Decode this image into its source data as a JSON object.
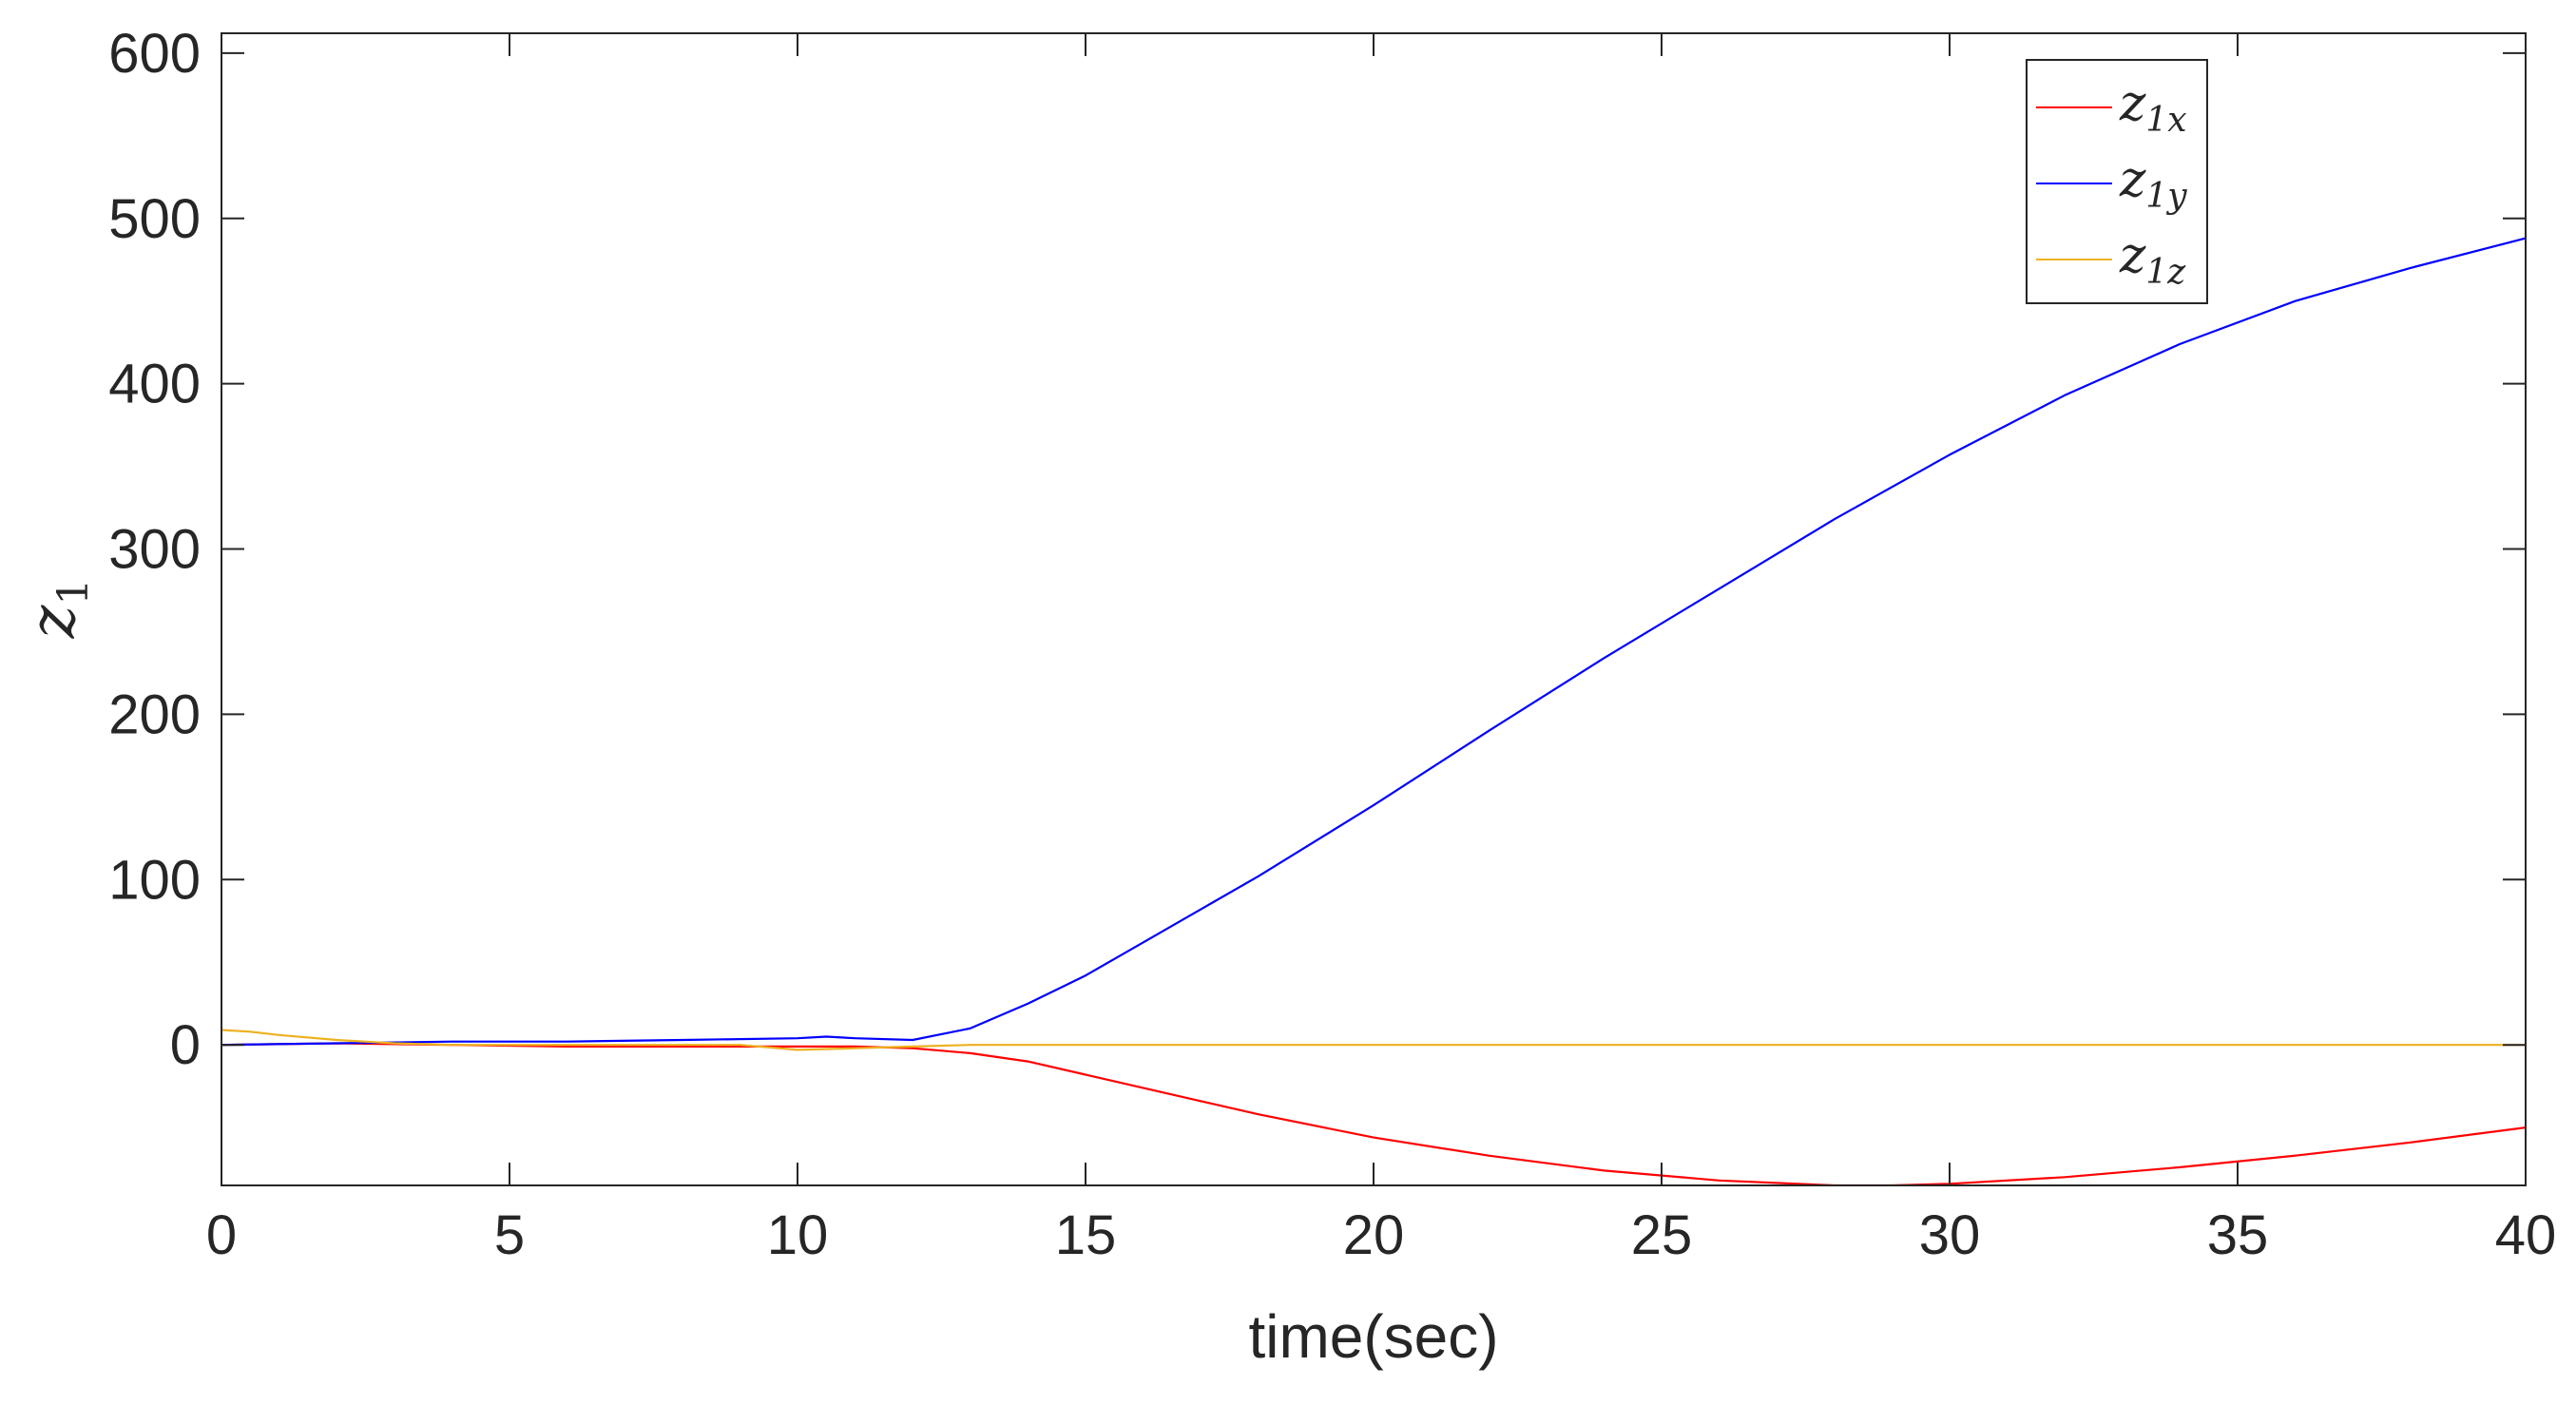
{
  "chart_data": {
    "type": "line",
    "title": "",
    "xlabel": "time(sec)",
    "ylabel": "z",
    "ylabel_sub": "1",
    "xlim": [
      0,
      40
    ],
    "ylim": [
      -85,
      612
    ],
    "xticks": [
      0,
      5,
      10,
      15,
      20,
      25,
      30,
      35,
      40
    ],
    "yticks": [
      0,
      100,
      200,
      300,
      400,
      500,
      600
    ],
    "xtick_labels": [
      "0",
      "5",
      "10",
      "15",
      "20",
      "25",
      "30",
      "35",
      "40"
    ],
    "ytick_labels": [
      "0",
      "100",
      "200",
      "300",
      "400",
      "500",
      "600"
    ],
    "grid": false,
    "box": true,
    "legend_position": "top-right",
    "series": [
      {
        "name": "z",
        "name_sub": "1x",
        "color": "#ff0000",
        "x": [
          0,
          2,
          4,
          6,
          8,
          10,
          11,
          12,
          13,
          14,
          15,
          16,
          18,
          20,
          22,
          24,
          26,
          28,
          29,
          30,
          32,
          34,
          36,
          38,
          40
        ],
        "y": [
          0,
          1,
          0,
          -1,
          -1,
          -1,
          -1,
          -2,
          -5,
          -10,
          -18,
          -26,
          -42,
          -56,
          -67,
          -76,
          -82,
          -85,
          -85,
          -84,
          -80,
          -74,
          -67,
          -59,
          -50
        ]
      },
      {
        "name": "z",
        "name_sub": "1y",
        "color": "#0000ff",
        "x": [
          0,
          2,
          4,
          6,
          8,
          10,
          10.5,
          11,
          12,
          13,
          14,
          15,
          16,
          18,
          20,
          22,
          24,
          26,
          28,
          30,
          32,
          34,
          36,
          38,
          40
        ],
        "y": [
          0,
          1,
          2,
          2,
          3,
          4,
          5,
          4,
          3,
          10,
          25,
          42,
          62,
          102,
          145,
          190,
          234,
          276,
          318,
          357,
          393,
          424,
          450,
          470,
          488
        ]
      },
      {
        "name": "z",
        "name_sub": "1z",
        "color": "#edb120",
        "x": [
          0,
          0.5,
          1,
          2,
          3,
          4,
          6,
          8,
          9,
          10,
          11,
          12,
          13,
          15,
          20,
          25,
          30,
          35,
          40
        ],
        "y": [
          9,
          8,
          6,
          3,
          1,
          0,
          0,
          0,
          0,
          -3,
          -2,
          -1,
          0,
          0,
          0,
          0,
          0,
          0,
          0
        ]
      }
    ]
  }
}
